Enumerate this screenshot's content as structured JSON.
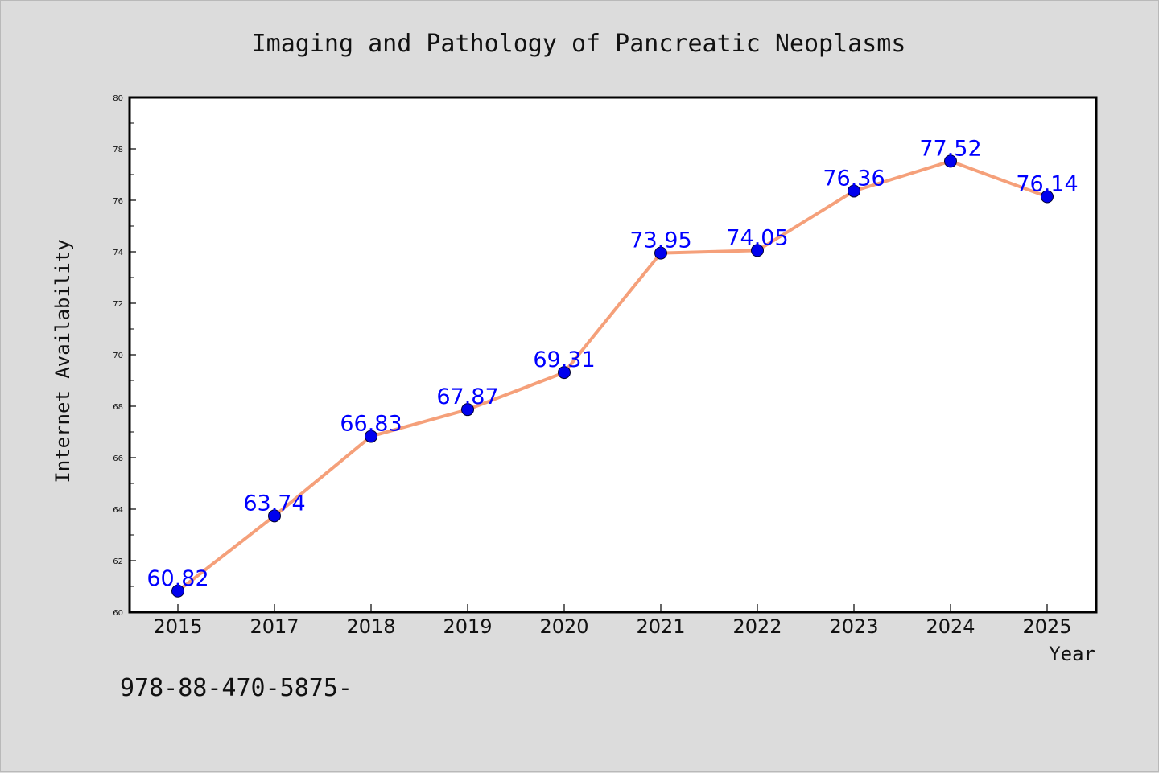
{
  "chart_data": {
    "type": "line",
    "title": "Imaging and Pathology of Pancreatic Neoplasms",
    "xlabel": "Year",
    "ylabel": "Internet Availability",
    "categories": [
      "2015",
      "2017",
      "2018",
      "2019",
      "2020",
      "2021",
      "2022",
      "2023",
      "2024",
      "2025"
    ],
    "series": [
      {
        "values": [
          60.82,
          63.74,
          66.83,
          67.87,
          69.31,
          73.95,
          74.05,
          76.36,
          77.52,
          76.14
        ],
        "data_labels": [
          "60.82",
          "63.74",
          "66.83",
          "67.87",
          "69.31",
          "73.95",
          "74.05",
          "76.36",
          "77.52",
          "76.14"
        ],
        "line_color": "#f5a07a",
        "marker_color": "#0000ee",
        "label_color": "#0000ff"
      }
    ],
    "ylim": [
      60,
      80
    ],
    "yticks": [
      "60",
      "62",
      "64",
      "66",
      "68",
      "70",
      "72",
      "74",
      "76",
      "78",
      "80"
    ],
    "grid": false,
    "legend": "none",
    "annotation": "978-88-470-5875-"
  }
}
